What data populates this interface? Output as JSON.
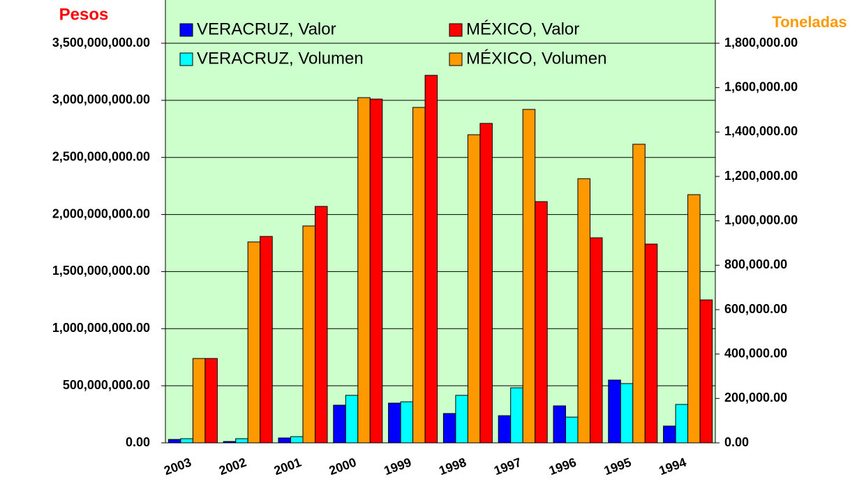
{
  "chart_data": {
    "type": "bar",
    "y_label": "Pesos",
    "y2_label": "Toneladas",
    "categories": [
      "2003",
      "2002",
      "2001",
      "2000",
      "1999",
      "1998",
      "1997",
      "1996",
      "1995",
      "1994"
    ],
    "series": [
      {
        "name": "VERACRUZ, Valor",
        "color": "#0000ff",
        "values": [
          30000000,
          12000000,
          43000000,
          330000000,
          348000000,
          257000000,
          238000000,
          324000000,
          550000000,
          147000000
        ]
      },
      {
        "name": "VERACRUZ, Volumen",
        "color": "#00ffff",
        "axis": "y2",
        "values": [
          18800,
          18800,
          28000,
          214000,
          185000,
          214000,
          248000,
          116000,
          267000,
          173000
        ]
      },
      {
        "name": "MÉXICO, Volumen",
        "color": "#ff9900",
        "axis": "y2",
        "values": [
          380000,
          905000,
          977000,
          1555000,
          1511000,
          1388000,
          1502000,
          1190000,
          1345000,
          1118000
        ]
      },
      {
        "name": "MÉXICO, Valor",
        "color": "#ff0000",
        "values": [
          739000000,
          1808000000,
          2071000000,
          3011000000,
          3219000000,
          2798000000,
          2113000000,
          1796000000,
          1741000000,
          1252000000
        ]
      }
    ],
    "legend_order": [
      0,
      3,
      1,
      2
    ],
    "ylim": [
      0,
      3500000000
    ],
    "yticks": [
      {
        "value": 0,
        "label": "0.00"
      },
      {
        "value": 500000000,
        "label": "500,000,000.00"
      },
      {
        "value": 1000000000,
        "label": "1,000,000,000.00"
      },
      {
        "value": 1500000000,
        "label": "1,500,000,000.00"
      },
      {
        "value": 2000000000,
        "label": "2,000,000,000.00"
      },
      {
        "value": 2500000000,
        "label": "2,500,000,000.00"
      },
      {
        "value": 3000000000,
        "label": "3,000,000,000.00"
      },
      {
        "value": 3500000000,
        "label": "3,500,000,000.00"
      }
    ],
    "y2lim": [
      0,
      1800000
    ],
    "y2ticks": [
      {
        "value": 0,
        "label": "0.00"
      },
      {
        "value": 200000,
        "label": "200,000.00"
      },
      {
        "value": 400000,
        "label": "400,000.00"
      },
      {
        "value": 600000,
        "label": "600,000.00"
      },
      {
        "value": 800000,
        "label": "800,000.00"
      },
      {
        "value": 1000000,
        "label": "1,000,000.00"
      },
      {
        "value": 1200000,
        "label": "1,200,000.00"
      },
      {
        "value": 1400000,
        "label": "1,400,000.00"
      },
      {
        "value": 1600000,
        "label": "1,600,000.00"
      },
      {
        "value": 1800000,
        "label": "1,800,000.00"
      }
    ],
    "grid": true,
    "plot_background": "#ccffcc"
  }
}
